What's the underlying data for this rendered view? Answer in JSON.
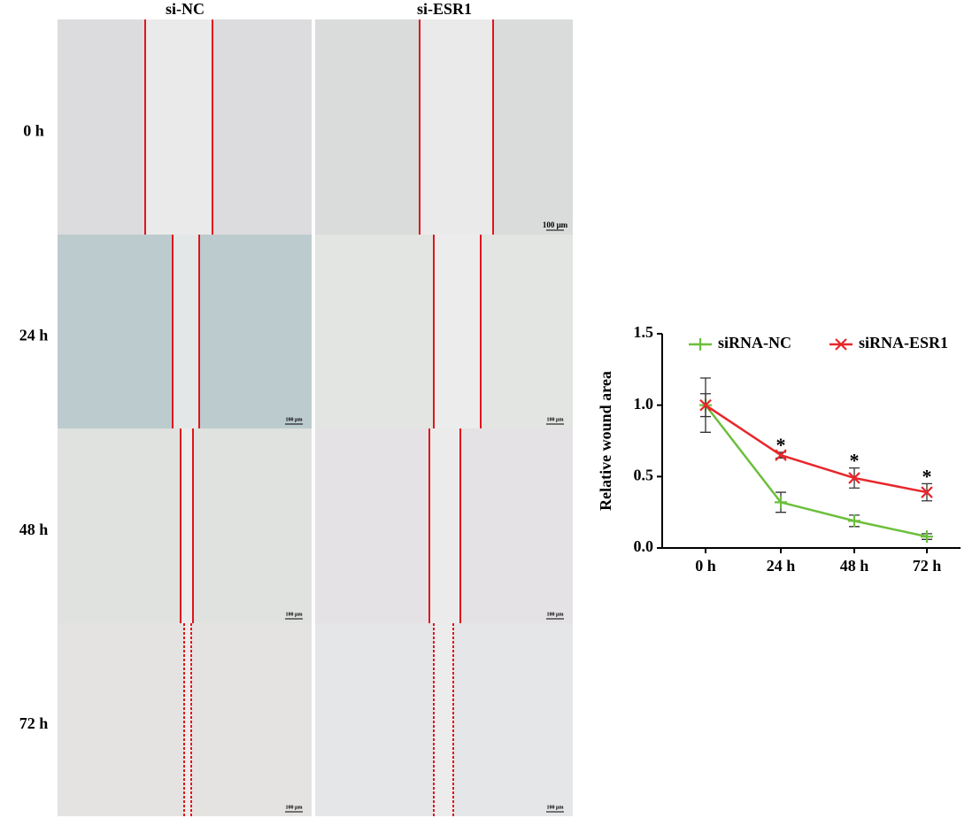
{
  "figure": {
    "columns": [
      "si-NC",
      "si-ESR1"
    ],
    "rows": [
      "0 h",
      "24 h",
      "48 h",
      "72 h"
    ],
    "scale_bar": "100 μm"
  },
  "chart_data": {
    "type": "line",
    "ylabel": "Relative wound area",
    "categories": [
      "0 h",
      "24 h",
      "48 h",
      "72 h"
    ],
    "series": [
      {
        "name": "siRNA-NC",
        "color": "#6cbf3c",
        "marker": "plus",
        "values": [
          1.0,
          0.32,
          0.19,
          0.08
        ],
        "errors": [
          0.19,
          0.07,
          0.04,
          0.02
        ]
      },
      {
        "name": "siRNA-ESR1",
        "color": "#e8262a",
        "marker": "x",
        "values": [
          1.0,
          0.65,
          0.49,
          0.39
        ],
        "errors": [
          0.08,
          0.02,
          0.07,
          0.06
        ],
        "annotations": [
          null,
          "*",
          "*",
          "*"
        ]
      }
    ],
    "ylim": [
      0,
      1.5
    ],
    "yticks": [
      {
        "value": 0,
        "label": "0.0"
      },
      {
        "value": 0.5,
        "label": "0.5"
      },
      {
        "value": 1,
        "label": "1.0"
      },
      {
        "value": 1.5,
        "label": "1.5"
      }
    ],
    "legend": "top"
  }
}
